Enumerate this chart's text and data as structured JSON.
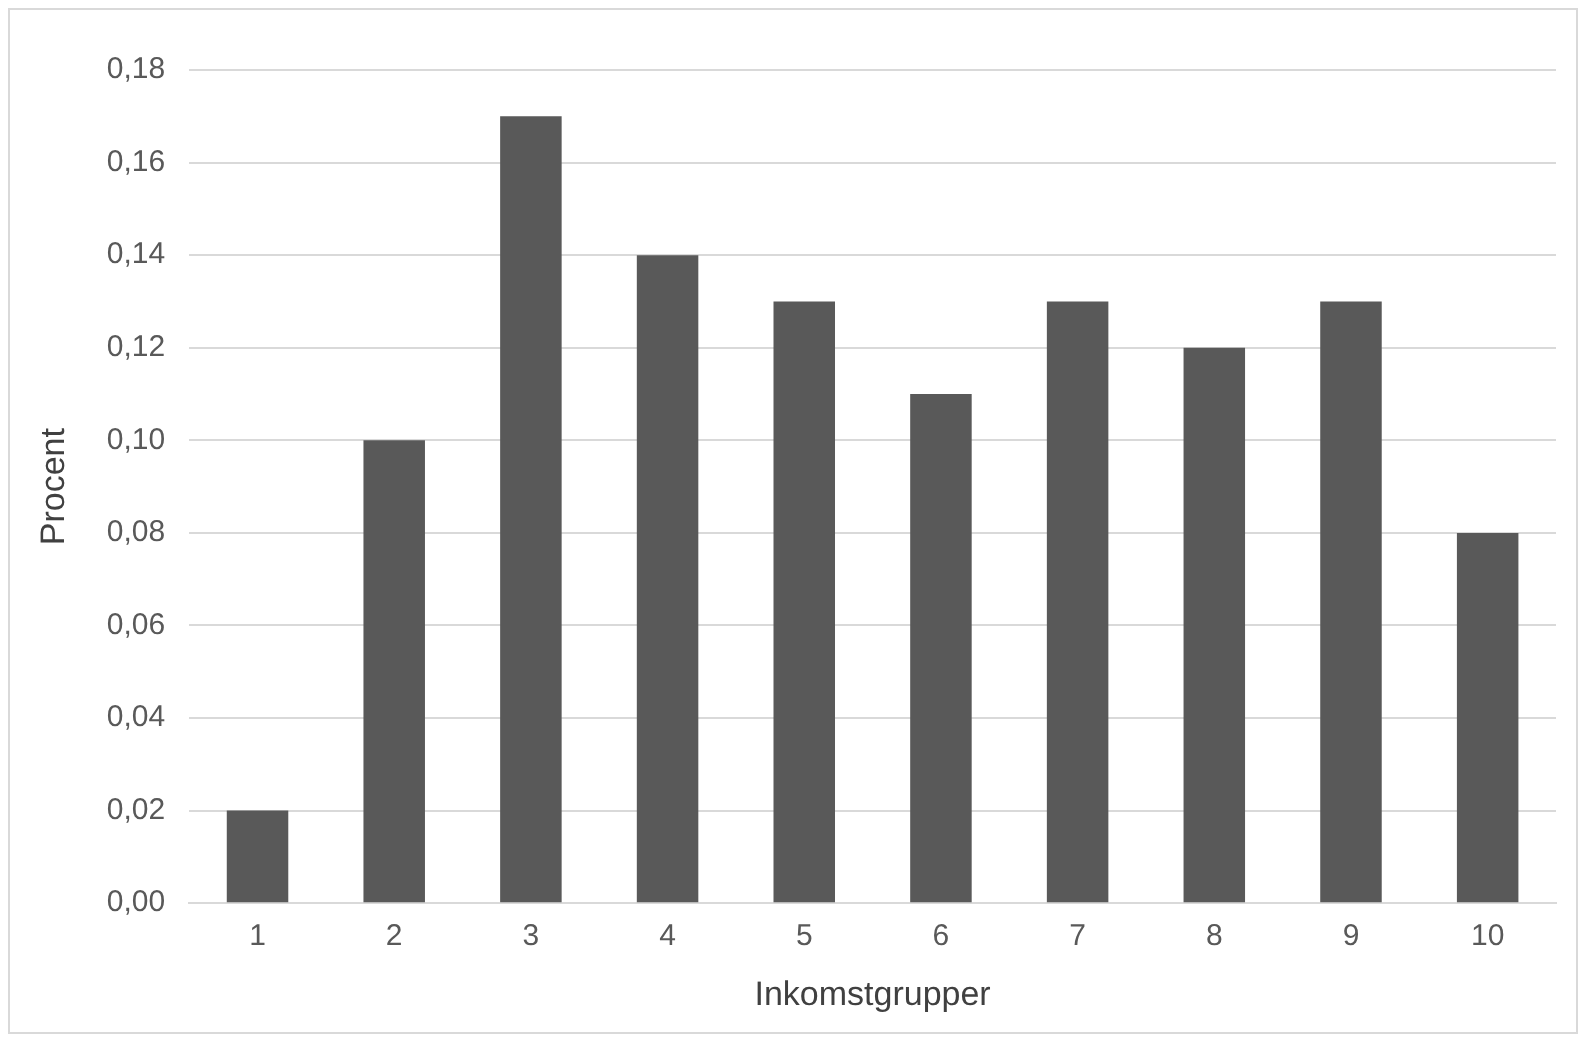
{
  "chart_data": {
    "type": "bar",
    "xlabel": "Inkomstgrupper",
    "ylabel": "Procent",
    "categories": [
      "1",
      "2",
      "3",
      "4",
      "5",
      "6",
      "7",
      "8",
      "9",
      "10"
    ],
    "values": [
      0.02,
      0.1,
      0.17,
      0.14,
      0.13,
      0.11,
      0.13,
      0.12,
      0.13,
      0.08
    ],
    "color": "#595959",
    "ylim": [
      0,
      0.18
    ],
    "yticks": [
      {
        "value": 0,
        "label": "0,00"
      },
      {
        "value": 0.02,
        "label": "0,02"
      },
      {
        "value": 0.04,
        "label": "0,04"
      },
      {
        "value": 0.06,
        "label": "0,06"
      },
      {
        "value": 0.08,
        "label": "0,08"
      },
      {
        "value": 0.1,
        "label": "0,10"
      },
      {
        "value": 0.12,
        "label": "0,12"
      },
      {
        "value": 0.14,
        "label": "0,14"
      },
      {
        "value": 0.16,
        "label": "0,16"
      },
      {
        "value": 0.18,
        "label": "0,18"
      }
    ],
    "grid": "y",
    "legend": false
  }
}
